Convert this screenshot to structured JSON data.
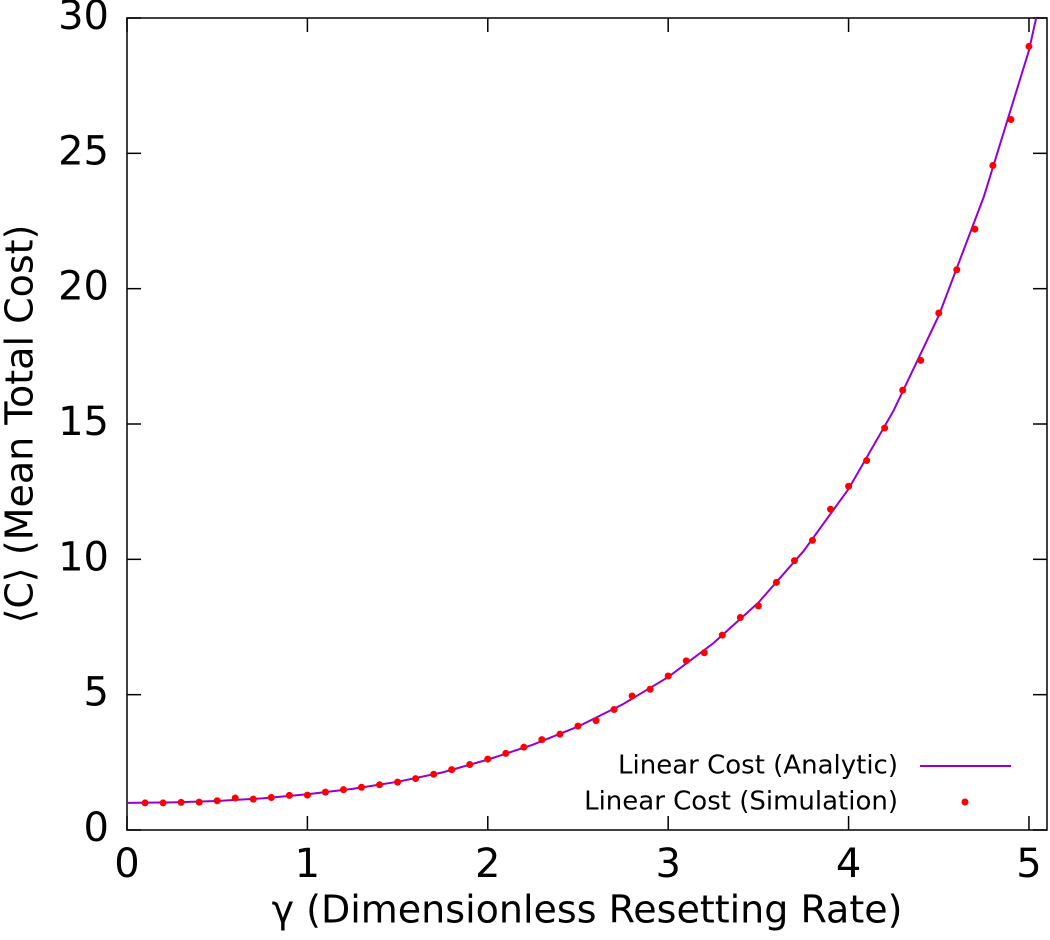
{
  "chart_data": {
    "type": "line",
    "xlabel": "γ (Dimensionless Resetting Rate)",
    "ylabel": "⟨C⟩ (Mean Total Cost)",
    "xlim": [
      0,
      5.1
    ],
    "ylim": [
      0,
      30
    ],
    "xticks": [
      0,
      1,
      2,
      3,
      4,
      5
    ],
    "yticks": [
      0,
      5,
      10,
      15,
      20,
      25,
      30
    ],
    "legend": "lower right",
    "series": [
      {
        "name": "Linear Cost (Analytic)",
        "color": "#9400d3",
        "style": "line",
        "x": [
          0,
          0.25,
          0.5,
          0.75,
          1,
          1.25,
          1.5,
          1.75,
          2,
          2.25,
          2.5,
          2.75,
          3,
          3.25,
          3.5,
          3.75,
          4,
          4.25,
          4.5,
          4.75,
          5,
          5.04
        ],
        "values": [
          1,
          1.02,
          1.07,
          1.17,
          1.32,
          1.52,
          1.78,
          2.13,
          2.6,
          3.15,
          3.82,
          4.65,
          5.65,
          6.9,
          8.4,
          10.3,
          12.6,
          15.5,
          19.0,
          23.4,
          28.8,
          30
        ]
      },
      {
        "name": "Linear Cost (Simulation)",
        "color": "#ff0000",
        "style": "points",
        "x": [
          0.1,
          0.2,
          0.3,
          0.4,
          0.5,
          0.6,
          0.7,
          0.8,
          0.9,
          1.0,
          1.1,
          1.2,
          1.3,
          1.4,
          1.5,
          1.6,
          1.7,
          1.8,
          1.9,
          2.0,
          2.1,
          2.2,
          2.3,
          2.4,
          2.5,
          2.6,
          2.7,
          2.8,
          2.9,
          3.0,
          3.1,
          3.2,
          3.3,
          3.4,
          3.5,
          3.6,
          3.7,
          3.8,
          3.9,
          4.0,
          4.1,
          4.2,
          4.3,
          4.4,
          4.5,
          4.6,
          4.7,
          4.8,
          4.9,
          5.0
        ],
        "values": [
          1.0,
          1.0,
          1.02,
          1.03,
          1.08,
          1.18,
          1.14,
          1.2,
          1.28,
          1.29,
          1.4,
          1.49,
          1.58,
          1.67,
          1.77,
          1.9,
          2.06,
          2.23,
          2.42,
          2.62,
          2.83,
          3.06,
          3.34,
          3.54,
          3.84,
          4.04,
          4.45,
          4.95,
          5.2,
          5.69,
          6.25,
          6.55,
          7.2,
          7.85,
          8.28,
          9.15,
          9.95,
          10.7,
          11.85,
          12.7,
          13.65,
          14.85,
          16.25,
          17.35,
          19.1,
          20.7,
          22.2,
          24.55,
          26.25,
          28.95
        ]
      }
    ]
  }
}
